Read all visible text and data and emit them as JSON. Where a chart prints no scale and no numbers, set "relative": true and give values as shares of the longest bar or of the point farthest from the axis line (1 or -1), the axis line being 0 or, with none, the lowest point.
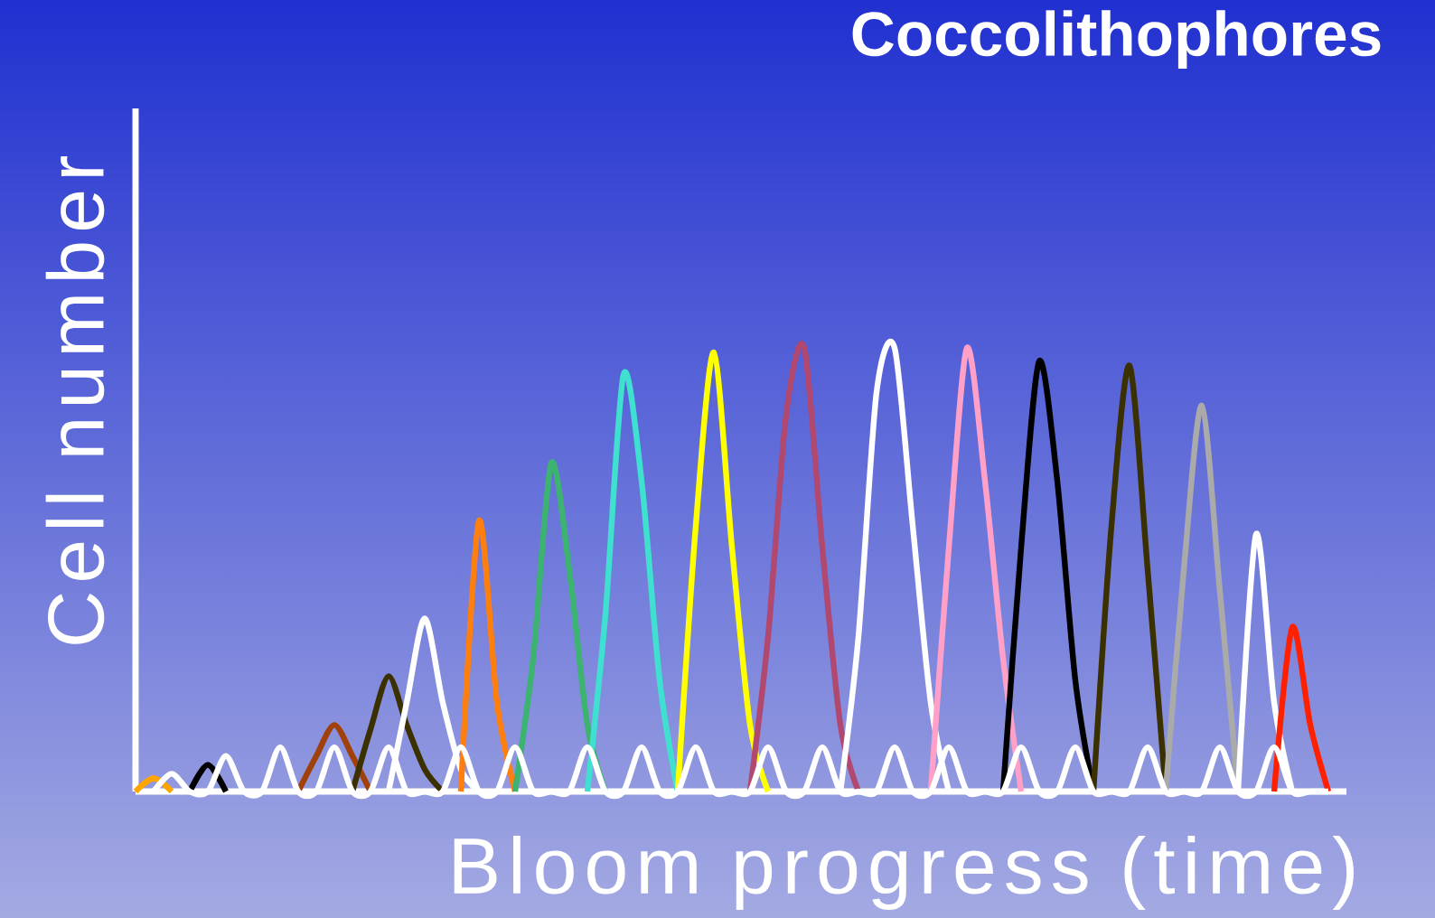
{
  "chart_data": {
    "type": "line",
    "title": "Coccolithophores",
    "xlabel": "Bloom progress (time)",
    "ylabel": "Cell number",
    "relative": true,
    "categories": [
      null,
      null,
      null,
      null,
      null,
      null,
      null,
      null,
      null,
      null,
      null,
      null,
      null,
      null,
      null,
      null,
      null,
      null,
      null,
      null,
      null,
      null,
      null,
      null,
      null,
      null,
      null,
      null,
      null,
      null,
      null,
      null,
      null,
      null,
      null,
      null,
      null,
      null,
      null,
      null,
      null,
      null,
      null,
      null,
      null,
      null,
      null,
      null,
      null,
      null,
      null,
      null,
      null,
      null,
      null,
      null,
      null,
      null,
      null,
      null,
      null,
      null,
      null,
      null,
      null,
      null,
      null,
      null
    ],
    "series": [
      {
        "color": "#ffa500",
        "values": [
          0,
          0.03,
          0,
          null,
          null,
          null,
          null,
          null,
          null,
          null,
          null,
          null,
          null,
          null,
          null,
          null,
          null,
          null,
          null,
          null,
          null,
          null,
          null,
          null,
          null,
          null,
          null,
          null,
          null,
          null,
          null,
          null,
          null,
          null,
          null,
          null,
          null,
          null,
          null,
          null,
          null,
          null,
          null,
          null,
          null,
          null,
          null,
          null,
          null,
          null,
          null,
          null,
          null,
          null,
          null,
          null,
          null,
          null,
          null,
          null,
          null,
          null,
          null,
          null,
          null,
          null,
          null,
          null
        ]
      },
      {
        "color": "#000000",
        "values": [
          null,
          null,
          null,
          0,
          0.06,
          0,
          null,
          null,
          null,
          null,
          null,
          null,
          null,
          null,
          null,
          null,
          null,
          null,
          null,
          null,
          null,
          null,
          null,
          null,
          null,
          null,
          null,
          null,
          null,
          null,
          null,
          null,
          null,
          null,
          null,
          null,
          null,
          null,
          null,
          null,
          null,
          null,
          null,
          null,
          null,
          null,
          null,
          null,
          null,
          null,
          null,
          null,
          null,
          null,
          null,
          null,
          null,
          null,
          null,
          null,
          null,
          null,
          null,
          null,
          null,
          null,
          null,
          null
        ]
      },
      {
        "color": "#a0400a",
        "values": [
          null,
          null,
          null,
          null,
          null,
          null,
          null,
          null,
          null,
          0,
          0.08,
          0.15,
          0.08,
          0,
          null,
          null,
          null,
          null,
          null,
          null,
          null,
          null,
          null,
          null,
          null,
          null,
          null,
          null,
          null,
          null,
          null,
          null,
          null,
          null,
          null,
          null,
          null,
          null,
          null,
          null,
          null,
          null,
          null,
          null,
          null,
          null,
          null,
          null,
          null,
          null,
          null,
          null,
          null,
          null,
          null,
          null,
          null,
          null,
          null,
          null,
          null,
          null,
          null,
          null,
          null,
          null,
          null,
          null
        ]
      },
      {
        "color": "#3b3000",
        "values": [
          null,
          null,
          null,
          null,
          null,
          null,
          null,
          null,
          null,
          null,
          null,
          null,
          0,
          0.14,
          0.26,
          0.15,
          0.05,
          0,
          null,
          null,
          null,
          null,
          null,
          null,
          null,
          null,
          null,
          null,
          null,
          null,
          null,
          null,
          null,
          null,
          null,
          null,
          null,
          null,
          null,
          null,
          null,
          null,
          null,
          null,
          null,
          null,
          null,
          null,
          null,
          null,
          null,
          null,
          null,
          null,
          null,
          null,
          null,
          null,
          null,
          null,
          null,
          null,
          null,
          null,
          null,
          null,
          null,
          null
        ]
      },
      {
        "color": "#ffffff",
        "values": [
          null,
          null,
          null,
          null,
          null,
          null,
          null,
          null,
          null,
          null,
          null,
          null,
          null,
          null,
          0,
          0.2,
          0.39,
          0.2,
          0.05,
          0,
          null,
          null,
          null,
          null,
          null,
          null,
          null,
          null,
          null,
          null,
          null,
          null,
          null,
          null,
          null,
          null,
          null,
          null,
          null,
          null,
          null,
          null,
          null,
          null,
          null,
          null,
          null,
          null,
          null,
          null,
          null,
          null,
          null,
          null,
          null,
          null,
          null,
          null,
          null,
          null,
          null,
          null,
          null,
          null,
          null,
          null,
          null,
          null
        ]
      },
      {
        "color": "#ff7f0e",
        "values": [
          null,
          null,
          null,
          null,
          null,
          null,
          null,
          null,
          null,
          null,
          null,
          null,
          null,
          null,
          null,
          null,
          null,
          null,
          0,
          0.61,
          0.2,
          0,
          null,
          null,
          null,
          null,
          null,
          null,
          null,
          null,
          null,
          null,
          null,
          null,
          null,
          null,
          null,
          null,
          null,
          null,
          null,
          null,
          null,
          null,
          null,
          null,
          null,
          null,
          null,
          null,
          null,
          null,
          null,
          null,
          null,
          null,
          null,
          null,
          null,
          null,
          null,
          null,
          null,
          null,
          null,
          null,
          null,
          null
        ]
      },
      {
        "color": "#3cb371",
        "values": [
          null,
          null,
          null,
          null,
          null,
          null,
          null,
          null,
          null,
          null,
          null,
          null,
          null,
          null,
          null,
          null,
          null,
          null,
          null,
          null,
          null,
          0,
          0.3,
          0.74,
          0.5,
          0.15,
          0,
          null,
          null,
          null,
          null,
          null,
          null,
          null,
          null,
          null,
          null,
          null,
          null,
          null,
          null,
          null,
          null,
          null,
          null,
          null,
          null,
          null,
          null,
          null,
          null,
          null,
          null,
          null,
          null,
          null,
          null,
          null,
          null,
          null,
          null,
          null,
          null,
          null,
          null,
          null,
          null,
          null
        ]
      },
      {
        "color": "#40e0d0",
        "values": [
          null,
          null,
          null,
          null,
          null,
          null,
          null,
          null,
          null,
          null,
          null,
          null,
          null,
          null,
          null,
          null,
          null,
          null,
          null,
          null,
          null,
          null,
          null,
          null,
          null,
          0,
          0.4,
          0.94,
          0.7,
          0.25,
          0,
          null,
          null,
          null,
          null,
          null,
          null,
          null,
          null,
          null,
          null,
          null,
          null,
          null,
          null,
          null,
          null,
          null,
          null,
          null,
          null,
          null,
          null,
          null,
          null,
          null,
          null,
          null,
          null,
          null,
          null,
          null,
          null,
          null,
          null,
          null,
          null,
          null
        ]
      },
      {
        "color": "#ffff00",
        "values": [
          null,
          null,
          null,
          null,
          null,
          null,
          null,
          null,
          null,
          null,
          null,
          null,
          null,
          null,
          null,
          null,
          null,
          null,
          null,
          null,
          null,
          null,
          null,
          null,
          null,
          null,
          null,
          null,
          null,
          null,
          0,
          0.6,
          0.99,
          0.55,
          0.15,
          0,
          null,
          null,
          null,
          null,
          null,
          null,
          null,
          null,
          null,
          null,
          null,
          null,
          null,
          null,
          null,
          null,
          null,
          null,
          null,
          null,
          null,
          null,
          null,
          null,
          null,
          null,
          null,
          null,
          null,
          null,
          null,
          null
        ]
      },
      {
        "color": "#b04870",
        "values": [
          null,
          null,
          null,
          null,
          null,
          null,
          null,
          null,
          null,
          null,
          null,
          null,
          null,
          null,
          null,
          null,
          null,
          null,
          null,
          null,
          null,
          null,
          null,
          null,
          null,
          null,
          null,
          null,
          null,
          null,
          null,
          null,
          null,
          null,
          0,
          0.35,
          0.85,
          1,
          0.55,
          0.15,
          0,
          null,
          null,
          null,
          null,
          null,
          null,
          null,
          null,
          null,
          null,
          null,
          null,
          null,
          null,
          null,
          null,
          null,
          null,
          null,
          null,
          null,
          null,
          null,
          null,
          null,
          null,
          null
        ]
      },
      {
        "color": "#ffffff",
        "values": [
          null,
          null,
          null,
          null,
          null,
          null,
          null,
          null,
          null,
          null,
          null,
          null,
          null,
          null,
          null,
          null,
          null,
          null,
          null,
          null,
          null,
          null,
          null,
          null,
          null,
          null,
          null,
          null,
          null,
          null,
          null,
          null,
          null,
          null,
          null,
          null,
          null,
          null,
          null,
          0,
          0.35,
          0.9,
          1,
          0.6,
          0.2,
          0,
          null,
          null,
          null,
          null,
          null,
          null,
          null,
          null,
          null,
          null,
          null,
          null,
          null,
          null,
          null,
          null,
          null,
          null,
          null,
          null,
          null,
          null
        ]
      },
      {
        "color": "#ffa0c8",
        "values": [
          null,
          null,
          null,
          null,
          null,
          null,
          null,
          null,
          null,
          null,
          null,
          null,
          null,
          null,
          null,
          null,
          null,
          null,
          null,
          null,
          null,
          null,
          null,
          null,
          null,
          null,
          null,
          null,
          null,
          null,
          null,
          null,
          null,
          null,
          null,
          null,
          null,
          null,
          null,
          null,
          null,
          null,
          null,
          null,
          0,
          0.55,
          1,
          0.7,
          0.3,
          0,
          null,
          null,
          null,
          null,
          null,
          null,
          null,
          null,
          null,
          null,
          null,
          null,
          null,
          null,
          null,
          null,
          null,
          null
        ]
      },
      {
        "color": "#000000",
        "values": [
          null,
          null,
          null,
          null,
          null,
          null,
          null,
          null,
          null,
          null,
          null,
          null,
          null,
          null,
          null,
          null,
          null,
          null,
          null,
          null,
          null,
          null,
          null,
          null,
          null,
          null,
          null,
          null,
          null,
          null,
          null,
          null,
          null,
          null,
          null,
          null,
          null,
          null,
          null,
          null,
          null,
          null,
          null,
          null,
          null,
          null,
          null,
          null,
          0,
          0.55,
          0.97,
          0.7,
          0.25,
          0,
          null,
          null,
          null,
          null,
          null,
          null,
          null,
          null,
          null,
          null,
          null,
          null,
          null,
          null
        ]
      },
      {
        "color": "#3b3000",
        "values": [
          null,
          null,
          null,
          null,
          null,
          null,
          null,
          null,
          null,
          null,
          null,
          null,
          null,
          null,
          null,
          null,
          null,
          null,
          null,
          null,
          null,
          null,
          null,
          null,
          null,
          null,
          null,
          null,
          null,
          null,
          null,
          null,
          null,
          null,
          null,
          null,
          null,
          null,
          null,
          null,
          null,
          null,
          null,
          null,
          null,
          null,
          null,
          null,
          null,
          null,
          null,
          null,
          null,
          0,
          0.6,
          0.96,
          0.5,
          0,
          null,
          null,
          null,
          null,
          null,
          null,
          null,
          null,
          null,
          null
        ]
      },
      {
        "color": "#aaaaaa",
        "values": [
          null,
          null,
          null,
          null,
          null,
          null,
          null,
          null,
          null,
          null,
          null,
          null,
          null,
          null,
          null,
          null,
          null,
          null,
          null,
          null,
          null,
          null,
          null,
          null,
          null,
          null,
          null,
          null,
          null,
          null,
          null,
          null,
          null,
          null,
          null,
          null,
          null,
          null,
          null,
          null,
          null,
          null,
          null,
          null,
          null,
          null,
          null,
          null,
          null,
          null,
          null,
          null,
          null,
          null,
          null,
          null,
          null,
          0,
          0.5,
          0.87,
          0.45,
          0,
          null,
          null,
          null,
          null,
          null,
          null
        ]
      },
      {
        "color": "#ffffff",
        "values": [
          null,
          null,
          null,
          null,
          null,
          null,
          null,
          null,
          null,
          null,
          null,
          null,
          null,
          null,
          null,
          null,
          null,
          null,
          null,
          null,
          null,
          null,
          null,
          null,
          null,
          null,
          null,
          null,
          null,
          null,
          null,
          null,
          null,
          null,
          null,
          null,
          null,
          null,
          null,
          null,
          null,
          null,
          null,
          null,
          null,
          null,
          null,
          null,
          null,
          null,
          null,
          null,
          null,
          null,
          null,
          null,
          null,
          null,
          null,
          null,
          null,
          0,
          0.58,
          0.2,
          0,
          null,
          null,
          null
        ]
      },
      {
        "color": "#ff2000",
        "values": [
          null,
          null,
          null,
          null,
          null,
          null,
          null,
          null,
          null,
          null,
          null,
          null,
          null,
          null,
          null,
          null,
          null,
          null,
          null,
          null,
          null,
          null,
          null,
          null,
          null,
          null,
          null,
          null,
          null,
          null,
          null,
          null,
          null,
          null,
          null,
          null,
          null,
          null,
          null,
          null,
          null,
          null,
          null,
          null,
          null,
          null,
          null,
          null,
          null,
          null,
          null,
          null,
          null,
          null,
          null,
          null,
          null,
          null,
          null,
          null,
          null,
          null,
          null,
          0,
          0.37,
          0.15,
          0,
          null
        ]
      },
      {
        "color": "#ffffff",
        "values": [
          null,
          0,
          0.04,
          0,
          0,
          0.08,
          0,
          0,
          0.1,
          0,
          0,
          0.1,
          0,
          0,
          0.1,
          0,
          0,
          0,
          0.1,
          0,
          0,
          0.1,
          0,
          0,
          0,
          0.1,
          0,
          0,
          0.1,
          0,
          0,
          0.1,
          0,
          0,
          0,
          0.1,
          0,
          0,
          0.1,
          0,
          0,
          0,
          0.1,
          0,
          0,
          0.1,
          0,
          0,
          0,
          0.1,
          0,
          0,
          0.1,
          0,
          0,
          0,
          0.1,
          0,
          0,
          0,
          0.1,
          0,
          0,
          0.1,
          0,
          0,
          0,
          null
        ]
      }
    ]
  }
}
